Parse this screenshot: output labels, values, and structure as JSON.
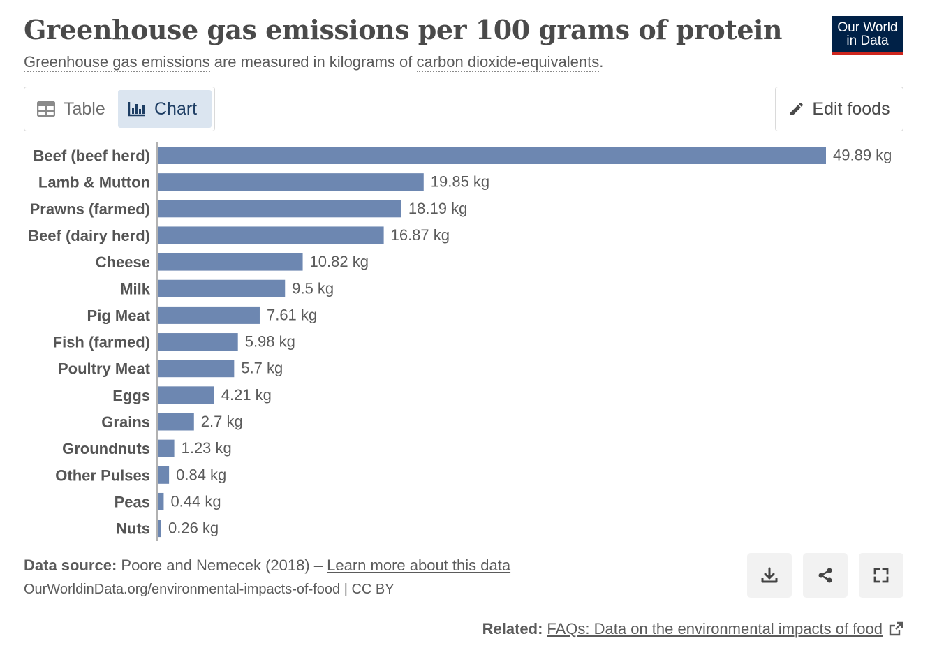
{
  "header": {
    "title": "Greenhouse gas emissions per 100 grams of protein",
    "subtitle_term1": "Greenhouse gas emissions",
    "subtitle_mid": " are measured in kilograms of ",
    "subtitle_term2": "carbon dioxide-equivalents",
    "subtitle_end": "."
  },
  "logo": {
    "line1": "Our World",
    "line2": "in Data"
  },
  "tabs": {
    "table": "Table",
    "chart": "Chart"
  },
  "edit_button": "Edit foods",
  "chart_data": {
    "type": "bar",
    "orientation": "horizontal",
    "title": "Greenhouse gas emissions per 100 grams of protein",
    "unit_suffix": " kg",
    "categories": [
      "Beef (beef herd)",
      "Lamb & Mutton",
      "Prawns (farmed)",
      "Beef (dairy herd)",
      "Cheese",
      "Milk",
      "Pig Meat",
      "Fish (farmed)",
      "Poultry Meat",
      "Eggs",
      "Grains",
      "Groundnuts",
      "Other Pulses",
      "Peas",
      "Nuts"
    ],
    "values": [
      49.89,
      19.85,
      18.19,
      16.87,
      10.82,
      9.5,
      7.61,
      5.98,
      5.7,
      4.21,
      2.7,
      1.23,
      0.84,
      0.44,
      0.26
    ],
    "value_labels": [
      "49.89 kg",
      "19.85 kg",
      "18.19 kg",
      "16.87 kg",
      "10.82 kg",
      "9.5 kg",
      "7.61 kg",
      "5.98 kg",
      "5.7 kg",
      "4.21 kg",
      "2.7 kg",
      "1.23 kg",
      "0.84 kg",
      "0.44 kg",
      "0.26 kg"
    ],
    "xlim": [
      0,
      49.89
    ],
    "bar_color": "#6d87b1",
    "grid": false
  },
  "footer": {
    "source_label": "Data source:",
    "source_text": " Poore and Nemecek (2018) – ",
    "source_link": "Learn more about this data",
    "url": "OurWorldinData.org/environmental-impacts-of-food | CC BY",
    "related_label": "Related:",
    "related_link": "FAQs: Data on the environmental impacts of food"
  },
  "icons": [
    "table-icon",
    "chart-icon",
    "pencil-icon",
    "download-icon",
    "share-icon",
    "fullscreen-icon",
    "external-link-icon"
  ]
}
